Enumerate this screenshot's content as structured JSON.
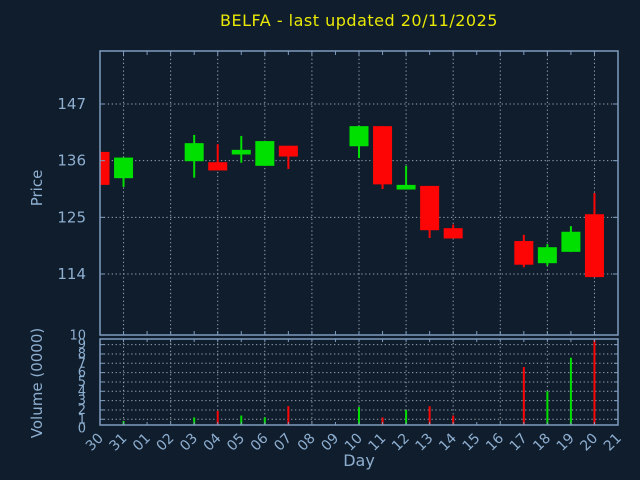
{
  "chart_data": {
    "type": "candlestick",
    "title": "BELFA - last updated 20/11/2025",
    "xlabel": "Day",
    "price_axis": {
      "label": "Price",
      "ticks": [
        147,
        136,
        125,
        114
      ],
      "range": [
        102.2,
        157.3
      ]
    },
    "volume_axis": {
      "label": "Volume (0000)",
      "ticks": [
        10,
        9,
        8,
        7,
        6,
        5,
        4,
        3,
        2,
        1,
        0
      ],
      "range": [
        0,
        10
      ]
    },
    "x_labels": [
      "30",
      "31",
      "01",
      "02",
      "03",
      "04",
      "05",
      "06",
      "07",
      "08",
      "09",
      "10",
      "11",
      "12",
      "13",
      "14",
      "15",
      "16",
      "17",
      "18",
      "19",
      "20",
      "21"
    ],
    "grid": {
      "style": "dotted",
      "vertical_every_2nd_day": true,
      "horizontal_at_ticks": true
    },
    "legend": "none",
    "candles": [
      {
        "day": "30",
        "x_index": 0,
        "open": 137.7,
        "high": 137.7,
        "low": 131.3,
        "close": 131.3,
        "volume": 0.0,
        "direction": "down"
      },
      {
        "day": "31",
        "x_index": 1,
        "open": 132.6,
        "high": 136.6,
        "low": 130.9,
        "close": 136.6,
        "volume": 0.8,
        "direction": "up"
      },
      {
        "day": "03",
        "x_index": 4,
        "open": 135.9,
        "high": 141.0,
        "low": 132.7,
        "close": 139.4,
        "volume": 1.2,
        "direction": "up"
      },
      {
        "day": "04",
        "x_index": 5,
        "open": 135.7,
        "high": 139.2,
        "low": 134.1,
        "close": 134.1,
        "volume": 1.9,
        "direction": "down"
      },
      {
        "day": "05",
        "x_index": 6,
        "open": 137.2,
        "high": 140.8,
        "low": 135.6,
        "close": 138.1,
        "volume": 1.4,
        "direction": "up"
      },
      {
        "day": "06",
        "x_index": 7,
        "open": 135.0,
        "high": 139.8,
        "low": 135.0,
        "close": 139.8,
        "volume": 1.2,
        "direction": "up"
      },
      {
        "day": "07",
        "x_index": 8,
        "open": 138.9,
        "high": 138.9,
        "low": 134.4,
        "close": 136.8,
        "volume": 2.4,
        "direction": "down"
      },
      {
        "day": "10",
        "x_index": 11,
        "open": 138.8,
        "high": 142.7,
        "low": 136.5,
        "close": 142.7,
        "volume": 2.3,
        "direction": "up"
      },
      {
        "day": "11",
        "x_index": 12,
        "open": 142.7,
        "high": 142.7,
        "low": 130.5,
        "close": 131.4,
        "volume": 1.2,
        "direction": "down"
      },
      {
        "day": "12",
        "x_index": 13,
        "open": 130.4,
        "high": 135.0,
        "low": 130.4,
        "close": 131.3,
        "volume": 2.0,
        "direction": "up"
      },
      {
        "day": "13",
        "x_index": 14,
        "open": 131.1,
        "high": 131.1,
        "low": 121.0,
        "close": 122.5,
        "volume": 2.4,
        "direction": "down"
      },
      {
        "day": "14",
        "x_index": 15,
        "open": 122.9,
        "high": 123.6,
        "low": 120.9,
        "close": 120.9,
        "volume": 1.4,
        "direction": "down"
      },
      {
        "day": "17",
        "x_index": 18,
        "open": 120.4,
        "high": 121.6,
        "low": 115.3,
        "close": 115.8,
        "volume": 6.6,
        "direction": "down"
      },
      {
        "day": "18",
        "x_index": 19,
        "open": 116.1,
        "high": 119.8,
        "low": 115.6,
        "close": 119.2,
        "volume": 4.0,
        "direction": "up"
      },
      {
        "day": "19",
        "x_index": 20,
        "open": 118.3,
        "high": 123.3,
        "low": 118.3,
        "close": 122.2,
        "volume": 7.6,
        "direction": "up"
      },
      {
        "day": "20",
        "x_index": 21,
        "open": 125.6,
        "high": 129.7,
        "low": 113.4,
        "close": 113.4,
        "volume": 9.5,
        "direction": "down"
      }
    ],
    "colors": {
      "up": "#00e000",
      "down": "#fd0505",
      "background": "#101d2d",
      "border": "#7e9cbe",
      "labels": "#8eafd0",
      "grid": "#97a3ae",
      "title": "#e9e905"
    }
  }
}
